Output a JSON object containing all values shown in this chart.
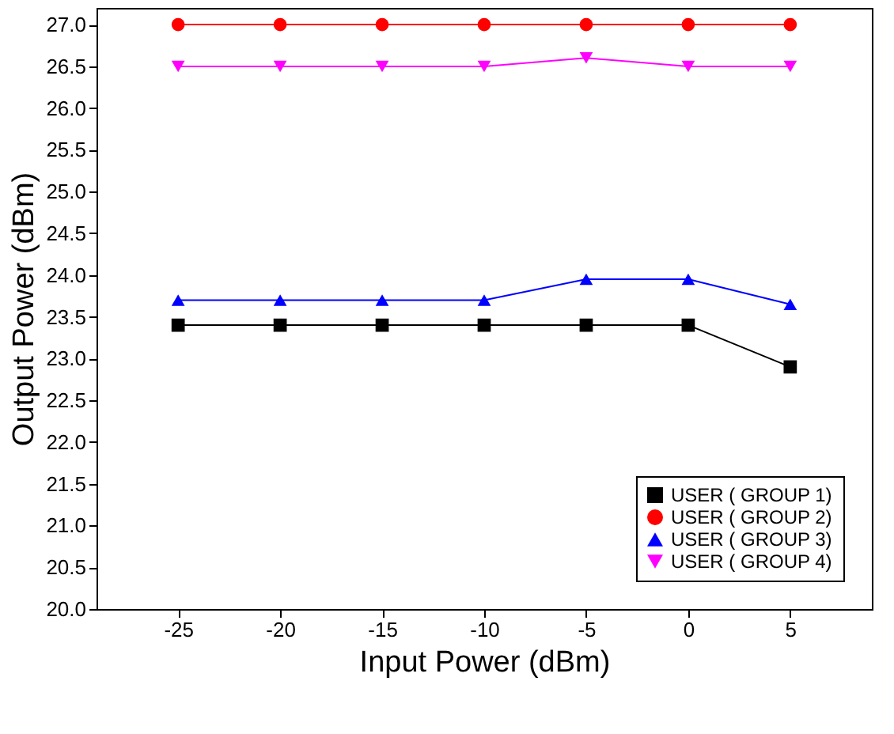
{
  "chart_data": {
    "type": "line",
    "xlabel": "Input Power (dBm)",
    "ylabel": "Output Power (dBm)",
    "x": [
      -25,
      -20,
      -15,
      -10,
      -5,
      0,
      5
    ],
    "series": [
      {
        "name": "USER ( GROUP 1)",
        "color": "#000000",
        "marker": "square",
        "values": [
          23.4,
          23.4,
          23.4,
          23.4,
          23.4,
          23.4,
          22.9
        ]
      },
      {
        "name": "USER ( GROUP 2)",
        "color": "#ff0000",
        "marker": "circle",
        "values": [
          27.0,
          27.0,
          27.0,
          27.0,
          27.0,
          27.0,
          27.0
        ]
      },
      {
        "name": "USER ( GROUP 3)",
        "color": "#0000ff",
        "marker": "triangle",
        "values": [
          23.7,
          23.7,
          23.7,
          23.7,
          23.95,
          23.95,
          23.65
        ]
      },
      {
        "name": "USER ( GROUP 4)",
        "color": "#ff00ff",
        "marker": "triangle-down",
        "values": [
          26.5,
          26.5,
          26.5,
          26.5,
          26.6,
          26.5,
          26.5
        ]
      }
    ],
    "xlim": [
      -29,
      9
    ],
    "xticks": [
      -25,
      -20,
      -15,
      -10,
      -5,
      0,
      5
    ],
    "ylim": [
      20,
      27.2
    ],
    "yticks": [
      {
        "value": 20,
        "label": "20.0"
      },
      {
        "value": 20.5,
        "label": "20.5"
      },
      {
        "value": 21,
        "label": "21.0"
      },
      {
        "value": 21.5,
        "label": "21.5"
      },
      {
        "value": 22,
        "label": "22.0"
      },
      {
        "value": 22.5,
        "label": "22.5"
      },
      {
        "value": 23,
        "label": "23.0"
      },
      {
        "value": 23.5,
        "label": "23.5"
      },
      {
        "value": 24,
        "label": "24.0"
      },
      {
        "value": 24.5,
        "label": "24.5"
      },
      {
        "value": 25,
        "label": "25.0"
      },
      {
        "value": 25.5,
        "label": "25.5"
      },
      {
        "value": 26,
        "label": "26.0"
      },
      {
        "value": 26.5,
        "label": "26.5"
      },
      {
        "value": 27,
        "label": "27.0"
      }
    ],
    "grid": false,
    "legend": "bottom right",
    "line_style": "solid"
  }
}
